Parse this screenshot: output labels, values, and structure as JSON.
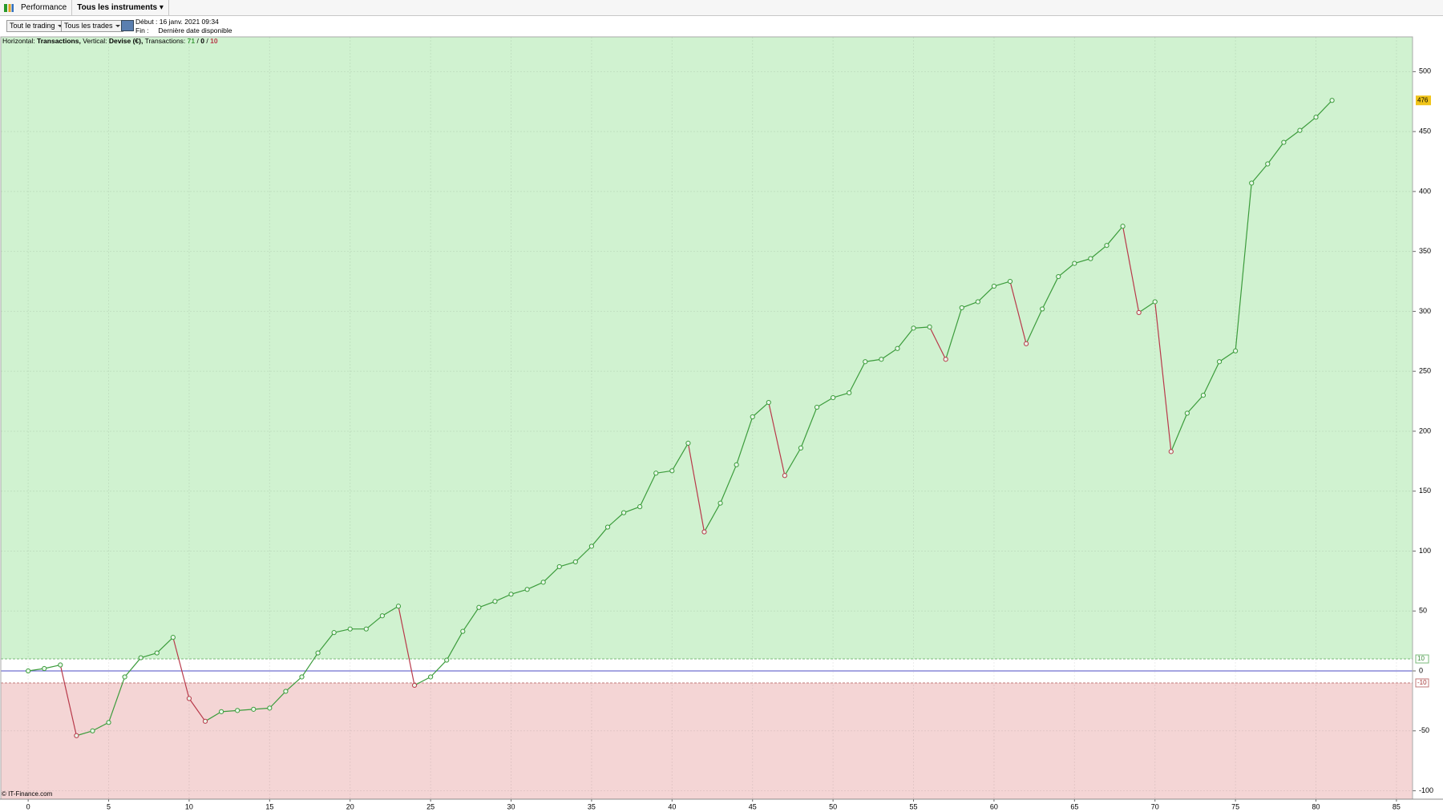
{
  "toolbar": {
    "tab": "Performance",
    "instruments": "Tous les instruments"
  },
  "filters": {
    "trading": "Tout le trading",
    "trades": "Tous les trades",
    "start_label": "Début :",
    "start": "16 janv. 2021 09:34",
    "end_label": "Fin :",
    "end": "Dernière date disponible"
  },
  "chart_data": {
    "type": "line",
    "info": {
      "h_label": "Horizontal:",
      "h_value": "Transactions,",
      "v_label": "Vertical:",
      "v_value": "Devise (€),",
      "t_label": "Transactions:",
      "wins": 71,
      "separator": "/",
      "flat": 0,
      "losses": 10
    },
    "copyright": "© IT-Finance.com",
    "x": [
      0,
      1,
      2,
      3,
      4,
      5,
      6,
      7,
      8,
      9,
      10,
      11,
      12,
      13,
      14,
      15,
      16,
      17,
      18,
      19,
      20,
      21,
      22,
      23,
      24,
      25,
      26,
      27,
      28,
      29,
      30,
      31,
      32,
      33,
      34,
      35,
      36,
      37,
      38,
      39,
      40,
      41,
      42,
      43,
      44,
      45,
      46,
      47,
      48,
      49,
      50,
      51,
      52,
      53,
      54,
      55,
      56,
      57,
      58,
      59,
      60,
      61,
      62,
      63,
      64,
      65,
      66,
      67,
      68,
      69,
      70,
      71,
      72,
      73,
      74,
      75,
      76,
      77,
      78,
      79,
      80,
      81
    ],
    "values": [
      0,
      2,
      5,
      -54,
      -50,
      -43,
      -5,
      11,
      15,
      28,
      -23,
      -42,
      -34,
      -33,
      -32,
      -31,
      -17,
      -5,
      15,
      32,
      35,
      35,
      46,
      54,
      -12,
      -5,
      9,
      33,
      53,
      58,
      64,
      68,
      74,
      87,
      91,
      104,
      120,
      132,
      137,
      165,
      167,
      190,
      116,
      140,
      172,
      212,
      224,
      163,
      186,
      220,
      228,
      232,
      258,
      260,
      269,
      286,
      287,
      260,
      303,
      308,
      321,
      325,
      273,
      302,
      329,
      340,
      344,
      355,
      371,
      299,
      308,
      183,
      215,
      230,
      258,
      267,
      407,
      423,
      441,
      451,
      462,
      476
    ],
    "up_color": "#3c9c3c",
    "down_color": "#b8394a",
    "bands": {
      "upper": 10,
      "lower": -10,
      "above_color": "#d0f2d0",
      "below_color": "#f4d5d5",
      "zero_color": "#6f6fd0"
    },
    "last_value_color": "#f0c419",
    "xlim": [
      -1.7,
      86
    ],
    "ylim": [
      -107,
      529
    ],
    "xticks": [
      0,
      5,
      10,
      15,
      20,
      25,
      30,
      35,
      40,
      45,
      50,
      55,
      60,
      65,
      70,
      75,
      80,
      85
    ],
    "yticks": [
      -100,
      -50,
      0,
      50,
      100,
      150,
      200,
      250,
      300,
      350,
      400,
      450,
      500
    ],
    "grid": true
  }
}
